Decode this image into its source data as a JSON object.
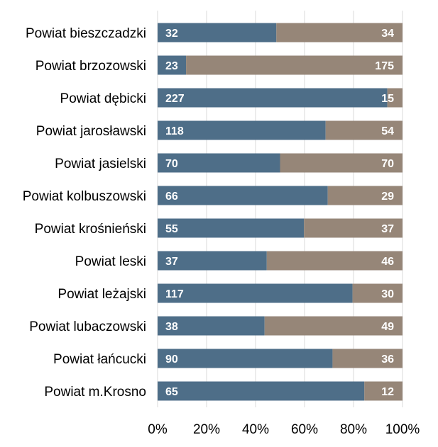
{
  "chart_data": {
    "type": "bar",
    "orientation": "horizontal",
    "stacked": "percent",
    "categories": [
      "Powiat bieszczadzki",
      "Powiat brzozowski",
      "Powiat dębicki",
      "Powiat jarosławski",
      "Powiat jasielski",
      "Powiat kolbuszowski",
      "Powiat krośnieński",
      "Powiat leski",
      "Powiat leżajski",
      "Powiat lubaczowski",
      "Powiat łańcucki",
      "Powiat m.Krosno"
    ],
    "series": [
      {
        "values": [
          32,
          23,
          227,
          118,
          70,
          66,
          55,
          37,
          117,
          38,
          90,
          65
        ],
        "color": "#4e6e88"
      },
      {
        "values": [
          34,
          175,
          15,
          54,
          70,
          29,
          37,
          46,
          30,
          49,
          36,
          12
        ],
        "color": "#968678"
      }
    ],
    "xticks": [
      "0%",
      "20%",
      "40%",
      "60%",
      "80%",
      "100%"
    ],
    "xlim": [
      0,
      100
    ],
    "grid": "vertical",
    "title": "",
    "xlabel": "",
    "ylabel": ""
  }
}
